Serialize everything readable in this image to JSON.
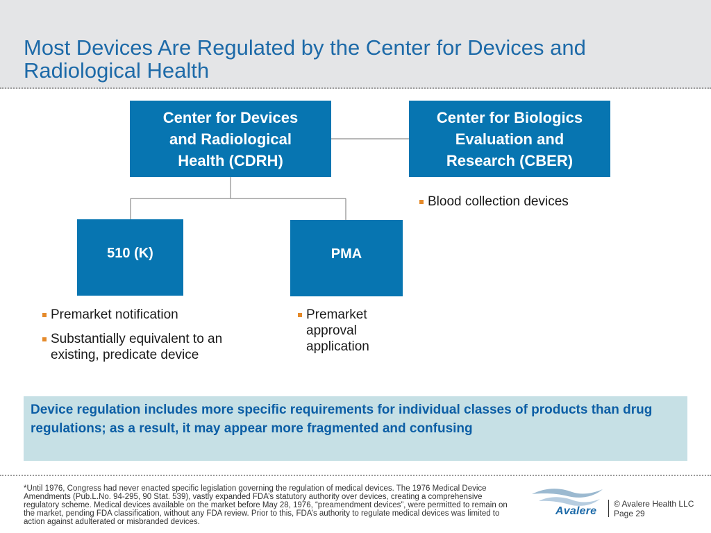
{
  "header": {
    "title": "Most Devices Are Regulated by the Center for Devices and Radiological Health"
  },
  "diagram": {
    "cdrh": {
      "label": "Center for Devices and Radiological Health (CDRH)"
    },
    "cber": {
      "label": "Center for Biologics Evaluation and Research (CBER)",
      "bullets": [
        "Blood collection devices"
      ]
    },
    "k510": {
      "label": "510 (K)",
      "bullets": [
        "Premarket notification",
        "Substantially equivalent to an existing, predicate device"
      ]
    },
    "pma": {
      "label": "PMA",
      "bullets": [
        "Premarket approval application"
      ]
    }
  },
  "callout": {
    "text": "Device regulation includes more specific requirements for individual classes of products than drug regulations; as a result, it may appear more fragmented and confusing"
  },
  "footer": {
    "footnote": "*Until 1976, Congress had never enacted specific legislation governing the regulation of medical devices. The 1976 Medical Device Amendments (Pub.L.No. 94-295, 90 Stat. 539), vastly expanded FDA’s statutory authority over devices, creating a comprehensive regulatory scheme. Medical devices available on the market before May 28, 1976, “preamendment devices”, were permitted to remain on the market, pending FDA classification, without any FDA review. Prior to this, FDA’s authority to regulate medical devices was limited to action against adulterated or misbranded devices.",
    "logo_text": "Avalere",
    "copyright": "© Avalere Health LLC",
    "page": "Page 29"
  },
  "colors": {
    "box_fill": "#0775b1",
    "title": "#1d6aa8",
    "bullet_marker": "#e58a2a",
    "callout_fill": "#c6e0e5",
    "callout_text": "#0c5ea5"
  }
}
